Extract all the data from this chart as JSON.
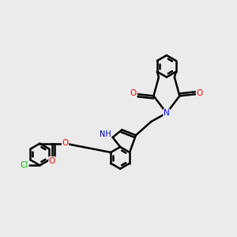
{
  "background_color": "#ebebeb",
  "bond_color": "#000000",
  "bond_width": 1.8,
  "atom_colors": {
    "N": "#0000ff",
    "O": "#ff0000",
    "Cl": "#00bb00",
    "NH": "#0000aa"
  },
  "figsize": [
    3.0,
    3.0
  ],
  "dpi": 100
}
